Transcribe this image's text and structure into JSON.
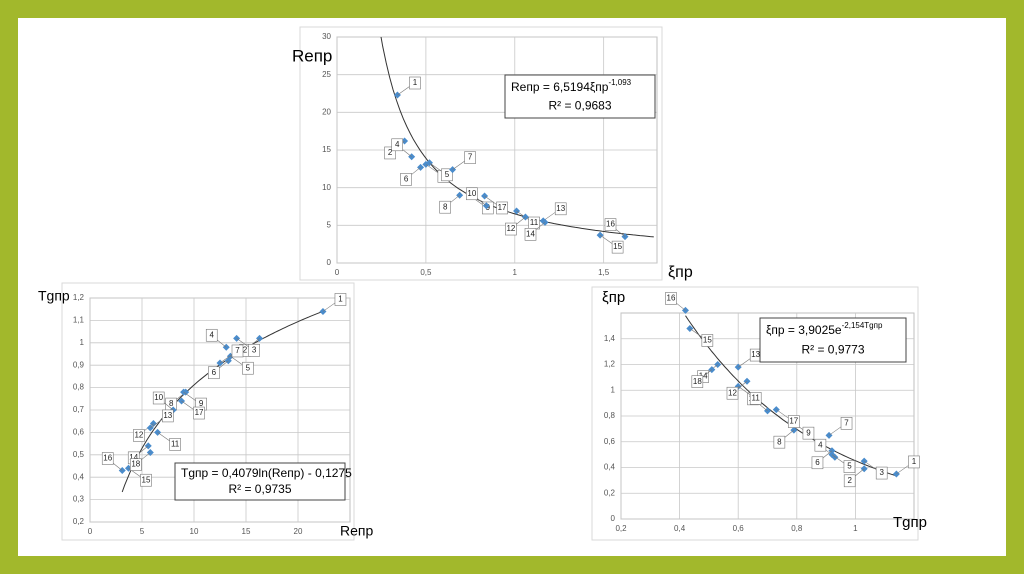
{
  "chart_data": [
    {
      "type": "scatter",
      "ylabel": "Reпр",
      "xlabel": "ξпр",
      "equation": {
        "text": "Reпр = 6,5194ξпр",
        "sup": "-1,093"
      },
      "r2": "R² = 0,9683",
      "trendline": {
        "type": "power",
        "a": 6.5194,
        "b": -1.093
      },
      "x": [
        0.34,
        0.38,
        0.5,
        0.42,
        0.52,
        0.47,
        0.65,
        0.69,
        0.75,
        0.84,
        1.01,
        1.06,
        1.16,
        1.17,
        1.48,
        1.62,
        0.83
      ],
      "y": [
        22.3,
        16.2,
        13.1,
        14.1,
        13.3,
        12.7,
        12.4,
        9.0,
        8.9,
        7.6,
        6.9,
        6.1,
        5.6,
        5.4,
        3.7,
        3.5,
        8.9
      ],
      "point_labels": [
        "1",
        "2",
        "3",
        "4",
        "5",
        "6",
        "7",
        "8",
        "9",
        "10",
        "11",
        "12",
        "13",
        "14",
        "15",
        "16",
        "17"
      ],
      "color": "#4a8ccc",
      "grid": true,
      "xlim": [
        0,
        1.8
      ],
      "ylim": [
        0,
        30
      ],
      "xticks": [
        0,
        {
          "value": 0.5,
          "label": "0,5"
        },
        1,
        {
          "value": 1.5,
          "label": "1,5"
        }
      ],
      "yticks": [
        0,
        5,
        10,
        15,
        20,
        25,
        30
      ]
    },
    {
      "type": "scatter",
      "ylabel": "Tgпр",
      "xlabel": "Reпр",
      "equation": {
        "text": "Tgпр = 0,4079ln(Reпр) - 0,1275",
        "sup": null
      },
      "r2": "R² = 0,9735",
      "trendline": {
        "type": "log",
        "a": 0.4079,
        "b": -0.1275
      },
      "x": [
        22.4,
        16.3,
        14.1,
        13.1,
        13.5,
        13.3,
        12.5,
        9.2,
        9.0,
        8.0,
        6.5,
        6.1,
        5.8,
        5.6,
        3.7,
        3.1,
        8.8,
        5.8
      ],
      "y": [
        1.14,
        1.02,
        1.02,
        0.98,
        0.94,
        0.92,
        0.91,
        0.78,
        0.78,
        0.7,
        0.6,
        0.64,
        0.62,
        0.54,
        0.44,
        0.43,
        0.74,
        0.51
      ],
      "point_labels": [
        "1",
        "2",
        "3",
        "4",
        "5",
        "6",
        "7",
        "8",
        "9",
        "10",
        "11",
        "12",
        "13",
        "14",
        "15",
        "16",
        "17",
        "18"
      ],
      "color": "#4a8ccc",
      "grid": true,
      "xlim": [
        0,
        25
      ],
      "ylim": [
        0.2,
        1.2
      ],
      "xticks": [
        0,
        5,
        10,
        15,
        20
      ],
      "yticks": [
        {
          "value": 0.2,
          "label": "0,2"
        },
        {
          "value": 0.3,
          "label": "0,3"
        },
        {
          "value": 0.4,
          "label": "0,4"
        },
        {
          "value": 0.5,
          "label": "0,5"
        },
        {
          "value": 0.6,
          "label": "0,6"
        },
        {
          "value": 0.7,
          "label": "0,7"
        },
        {
          "value": 0.8,
          "label": "0,8"
        },
        {
          "value": 0.9,
          "label": "0,9"
        },
        1,
        {
          "value": 1.1,
          "label": "1,1"
        },
        {
          "value": 1.2,
          "label": "1,2"
        }
      ]
    },
    {
      "type": "scatter",
      "ylabel": "ξпр",
      "xlabel": "Tgпр",
      "equation": {
        "text": "ξпр = 3,9025e",
        "sup": "-2,154Tgпр"
      },
      "r2": "R² = 0,9773",
      "trendline": {
        "type": "exp",
        "a": 3.9025,
        "b": -2.154
      },
      "x": [
        1.14,
        1.03,
        1.03,
        0.93,
        0.92,
        0.92,
        0.91,
        0.79,
        0.78,
        0.7,
        0.6,
        0.63,
        0.6,
        0.53,
        0.435,
        0.42,
        0.73,
        0.51
      ],
      "y": [
        0.35,
        0.39,
        0.45,
        0.48,
        0.5,
        0.53,
        0.65,
        0.69,
        0.76,
        0.84,
        1.03,
        1.07,
        1.18,
        1.2,
        1.48,
        1.62,
        0.85,
        1.16
      ],
      "point_labels": [
        "1",
        "2",
        "3",
        "4",
        "5",
        "6",
        "7",
        "8",
        "9",
        "10",
        "11",
        "12",
        "13",
        "14",
        "15",
        "16",
        "17",
        "18"
      ],
      "color": "#4a8ccc",
      "grid": true,
      "xlim": [
        0.2,
        1.2
      ],
      "ylim": [
        0,
        1.6
      ],
      "xticks": [
        {
          "value": 0.2,
          "label": "0,2"
        },
        {
          "value": 0.4,
          "label": "0,4"
        },
        {
          "value": 0.6,
          "label": "0,6"
        },
        {
          "value": 0.8,
          "label": "0,8"
        },
        1
      ],
      "yticks": [
        0,
        {
          "value": 0.2,
          "label": "0,2"
        },
        {
          "value": 0.4,
          "label": "0,4"
        },
        {
          "value": 0.6,
          "label": "0,6"
        },
        {
          "value": 0.8,
          "label": "0,8"
        },
        1,
        {
          "value": 1.2,
          "label": "1,2"
        },
        {
          "value": 1.4,
          "label": "1,4"
        }
      ]
    }
  ]
}
